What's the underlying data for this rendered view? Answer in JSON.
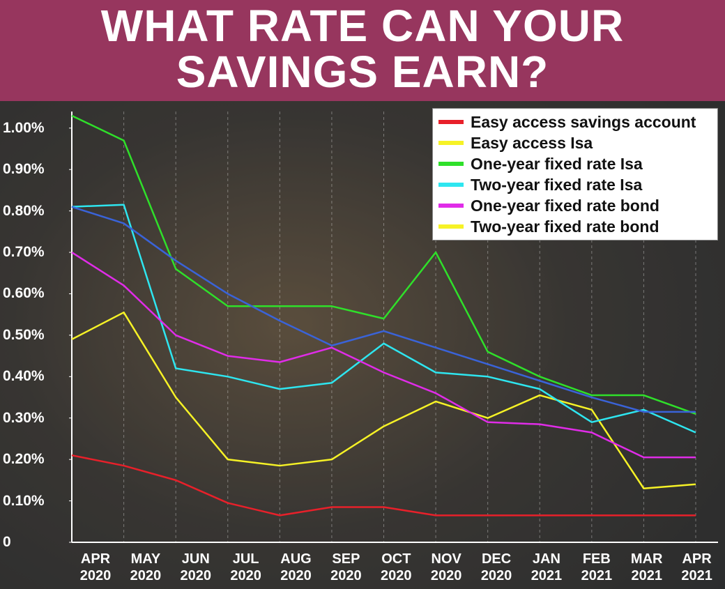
{
  "chart_data": {
    "type": "line",
    "title": "WHAT RATE CAN YOUR SAVINGS EARN?",
    "categories": [
      "APR 2020",
      "MAY 2020",
      "JUN 2020",
      "JUL 2020",
      "AUG 2020",
      "SEP 2020",
      "OCT 2020",
      "NOV 2020",
      "DEC 2020",
      "JAN 2021",
      "FEB 2021",
      "MAR 2021",
      "APR 2021"
    ],
    "series": [
      {
        "name": "Easy access savings account",
        "color": "#e8202a",
        "values": [
          0.21,
          0.185,
          0.15,
          0.095,
          0.065,
          0.085,
          0.085,
          0.065,
          0.065,
          0.065,
          0.065,
          0.065,
          0.065
        ]
      },
      {
        "name": "Easy access Isa",
        "color": "#f6f226",
        "values": [
          0.49,
          0.555,
          0.35,
          0.2,
          0.185,
          0.2,
          0.28,
          0.34,
          0.3,
          0.355,
          0.32,
          0.13,
          0.14
        ]
      },
      {
        "name": "One-year fixed rate Isa",
        "color": "#2fe02a",
        "values": [
          1.03,
          0.97,
          0.66,
          0.57,
          0.57,
          0.57,
          0.54,
          0.7,
          0.46,
          0.4,
          0.355,
          0.355,
          0.31
        ]
      },
      {
        "name": "Two-year fixed rate Isa",
        "color": "#2ee6f0",
        "values": [
          0.81,
          0.815,
          0.42,
          0.4,
          0.37,
          0.385,
          0.48,
          0.41,
          0.4,
          0.37,
          0.29,
          0.32,
          0.265
        ]
      },
      {
        "name": "One-year fixed rate bond",
        "color": "#e02ce8",
        "values": [
          0.7,
          0.62,
          0.5,
          0.45,
          0.435,
          0.47,
          0.41,
          0.36,
          0.29,
          0.285,
          0.265,
          0.205,
          0.205
        ]
      },
      {
        "name": "Two-year fixed rate bond",
        "color": "#3a63d8",
        "legend_color": "#f6f226",
        "values": [
          0.81,
          0.77,
          0.68,
          0.6,
          0.535,
          0.475,
          0.51,
          0.47,
          0.43,
          0.39,
          0.35,
          0.315,
          0.315
        ]
      }
    ],
    "ylim": [
      0,
      1.04
    ],
    "yticks": [
      0,
      {
        "value": 0.1,
        "label": "0.10%"
      },
      {
        "value": 0.2,
        "label": "0.20%"
      },
      {
        "value": 0.3,
        "label": "0.30%"
      },
      {
        "value": 0.4,
        "label": "0.40%"
      },
      {
        "value": 0.5,
        "label": "0.50%"
      },
      {
        "value": 0.6,
        "label": "0.60%"
      },
      {
        "value": 0.7,
        "label": "0.70%"
      },
      {
        "value": 0.8,
        "label": "0.80%"
      },
      {
        "value": 0.9,
        "label": "0.90%"
      },
      {
        "value": 1,
        "label": "1.00%"
      }
    ],
    "grid": true,
    "legend": "upper right"
  }
}
